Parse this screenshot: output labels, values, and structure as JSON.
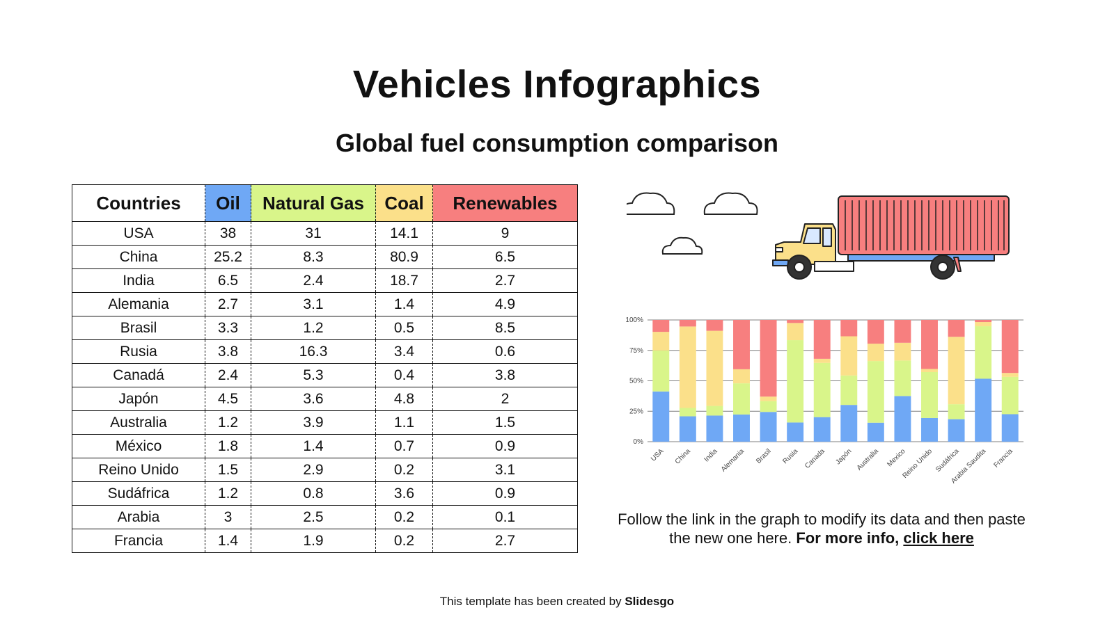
{
  "title": "Vehicles Infographics",
  "subtitle": "Global fuel consumption comparison",
  "table": {
    "headers": [
      "Countries",
      "Oil",
      "Natural Gas",
      "Coal",
      "Renewables"
    ],
    "header_colors": [
      "#ffffff",
      "#6fa8f5",
      "#d9f58a",
      "#fbe08a",
      "#f77f7f"
    ],
    "rows": [
      [
        "USA",
        "38",
        "31",
        "14.1",
        "9"
      ],
      [
        "China",
        "25.2",
        "8.3",
        "80.9",
        "6.5"
      ],
      [
        "India",
        "6.5",
        "2.4",
        "18.7",
        "2.7"
      ],
      [
        "Alemania",
        "2.7",
        "3.1",
        "1.4",
        "4.9"
      ],
      [
        "Brasil",
        "3.3",
        "1.2",
        "0.5",
        "8.5"
      ],
      [
        "Rusia",
        "3.8",
        "16.3",
        "3.4",
        "0.6"
      ],
      [
        "Canadá",
        "2.4",
        "5.3",
        "0.4",
        "3.8"
      ],
      [
        "Japón",
        "4.5",
        "3.6",
        "4.8",
        "2"
      ],
      [
        "Australia",
        "1.2",
        "3.9",
        "1.1",
        "1.5"
      ],
      [
        "México",
        "1.8",
        "1.4",
        "0.7",
        "0.9"
      ],
      [
        "Reino Unido",
        "1.5",
        "2.9",
        "0.2",
        "3.1"
      ],
      [
        "Sudáfrica",
        "1.2",
        "0.8",
        "3.6",
        "0.9"
      ],
      [
        "Arabia",
        "3",
        "2.5",
        "0.2",
        "0.1"
      ],
      [
        "Francia",
        "1.4",
        "1.9",
        "0.2",
        "2.7"
      ]
    ]
  },
  "chart_data": {
    "type": "bar",
    "stacked": "percent",
    "categories": [
      "USA",
      "China",
      "India",
      "Alemania",
      "Brasil",
      "Rusia",
      "Canada",
      "Japón",
      "Australia",
      "Mexico",
      "Reino Unido",
      "Sudáfrica",
      "Arabia Saudita",
      "Francia"
    ],
    "series": [
      {
        "color": "#6fa8f5",
        "values": [
          38,
          25.2,
          6.5,
          2.7,
          3.3,
          3.8,
          2.4,
          4.5,
          1.2,
          1.8,
          1.5,
          1.2,
          3,
          1.4
        ]
      },
      {
        "color": "#d9f58a",
        "values": [
          31,
          8.3,
          2.4,
          3.1,
          1.2,
          16.3,
          5.3,
          3.6,
          3.9,
          1.4,
          2.9,
          0.8,
          2.5,
          1.9
        ]
      },
      {
        "color": "#fbe08a",
        "values": [
          14.1,
          80.9,
          18.7,
          1.4,
          0.5,
          3.4,
          0.4,
          4.8,
          1.1,
          0.7,
          0.2,
          3.6,
          0.2,
          0.2
        ]
      },
      {
        "color": "#f77f7f",
        "values": [
          9,
          6.5,
          2.7,
          4.9,
          8.5,
          0.6,
          3.8,
          2,
          1.5,
          0.9,
          3.1,
          0.9,
          0.1,
          2.7
        ]
      }
    ],
    "ytick_labels": [
      "0%",
      "25%",
      "50%",
      "75%",
      "100%"
    ],
    "ylim": [
      0,
      100
    ],
    "grid": true
  },
  "note": {
    "text": "Follow the link in the graph to modify its data and then paste the new one here.",
    "bold": "For more info,",
    "link": "click here"
  },
  "footer": {
    "text": "This template has been created by",
    "brand": "Slidesgo"
  },
  "icons": [
    "cloud-icon",
    "truck-icon"
  ]
}
